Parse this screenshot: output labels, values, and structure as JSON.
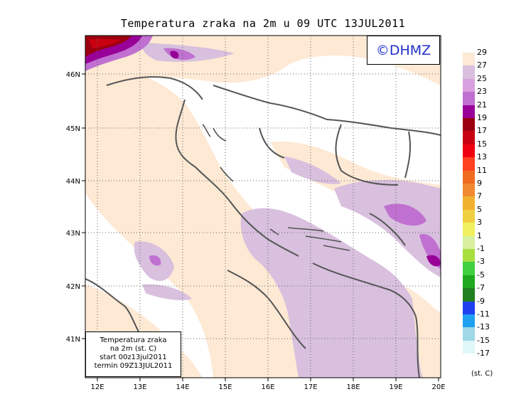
{
  "title": "Temperatura zraka na 2m u 09 UTC 13JUL2011",
  "watermark": "©DHMZ",
  "info_box": {
    "line1": "Temperatura zraka",
    "line2": "na 2m (st. C)",
    "line3": "start 00z13jul2011",
    "line4": "termin 09Z13JUL2011"
  },
  "axes": {
    "lon_labels": [
      "12E",
      "13E",
      "14E",
      "15E",
      "16E",
      "17E",
      "18E",
      "19E",
      "20E"
    ],
    "lat_labels": [
      "46N",
      "45N",
      "44N",
      "43N",
      "42N",
      "41N"
    ]
  },
  "legend": {
    "labels": [
      "29",
      "27",
      "25",
      "23",
      "21",
      "19",
      "17",
      "15",
      "13",
      "11",
      "9",
      "7",
      "5",
      "3",
      "1",
      "-1",
      "-3",
      "-5",
      "-7",
      "-9",
      "-11",
      "-13",
      "-15",
      "-17"
    ],
    "colors": [
      "#fde9d4",
      "#d8c0de",
      "#d8a0de",
      "#c070d0",
      "#980098",
      "#9b0010",
      "#c80010",
      "#ee0010",
      "#ff4020",
      "#f06a20",
      "#f08a30",
      "#f0b030",
      "#f0d040",
      "#f0f060",
      "#d8f0a0",
      "#a8e040",
      "#40d040",
      "#20a820",
      "#208020",
      "#2040f0",
      "#20a0f0",
      "#a0d8e8",
      "#e0f8f8"
    ],
    "units": "(st. C)"
  }
}
